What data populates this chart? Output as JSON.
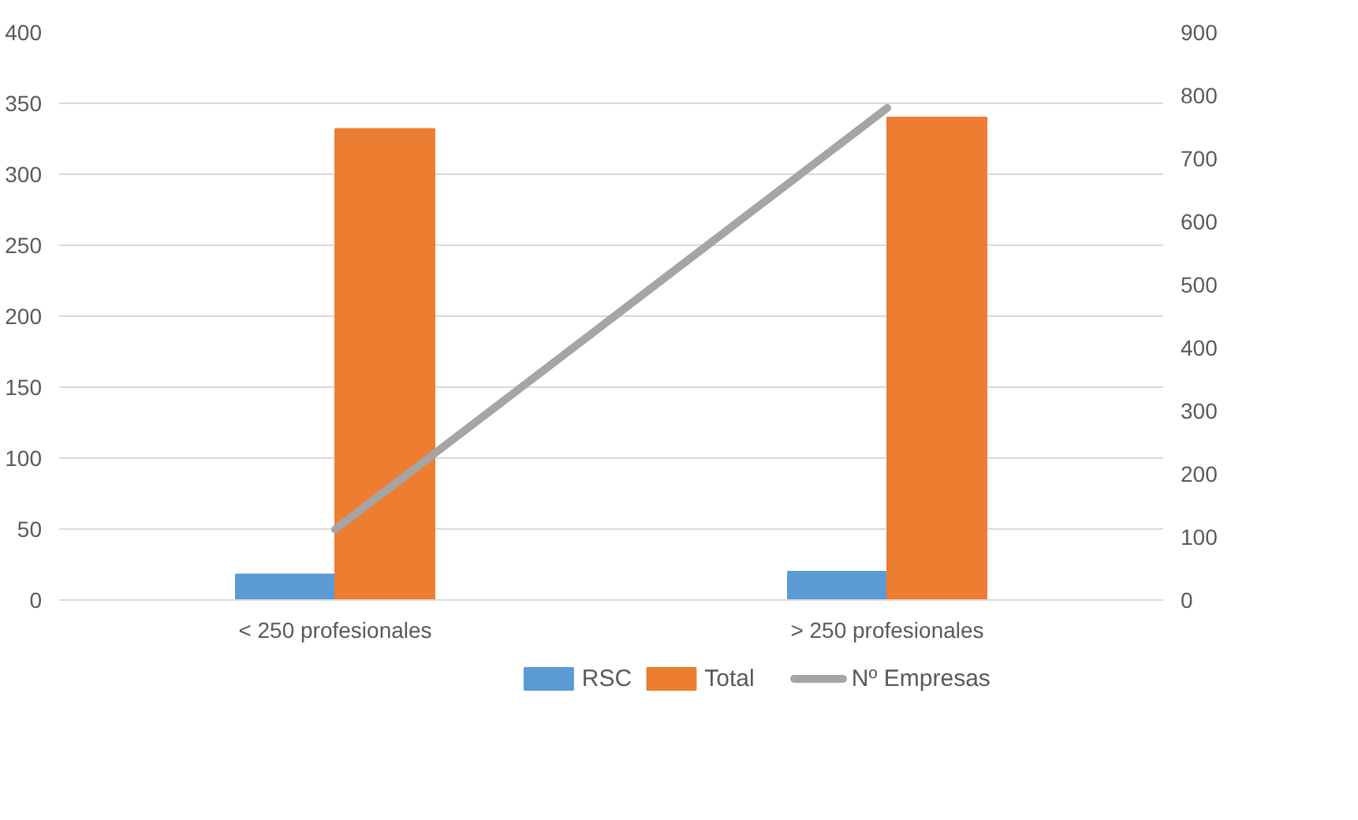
{
  "chart_data": {
    "type": "bar",
    "categories": [
      "< 250 profesionales",
      "> 250 profesionales"
    ],
    "series": [
      {
        "name": "RSC",
        "color": "#5b9bd5",
        "values": [
          18,
          20
        ]
      },
      {
        "name": "Total",
        "color": "#ed7d31",
        "values": [
          332,
          340
        ]
      },
      {
        "name": "Nº Empresas",
        "color": "#a5a5a5",
        "values": [
          112,
          780
        ],
        "type": "line",
        "axis": "y2"
      }
    ],
    "ylim": [
      0,
      400
    ],
    "yticks": [
      0,
      50,
      100,
      150,
      200,
      250,
      300,
      350,
      400
    ],
    "y2lim": [
      0,
      900
    ],
    "y2ticks": [
      0,
      100,
      200,
      300,
      400,
      500,
      600,
      700,
      800,
      900
    ],
    "grid": "y",
    "legend": "bottom",
    "marker": "none"
  }
}
